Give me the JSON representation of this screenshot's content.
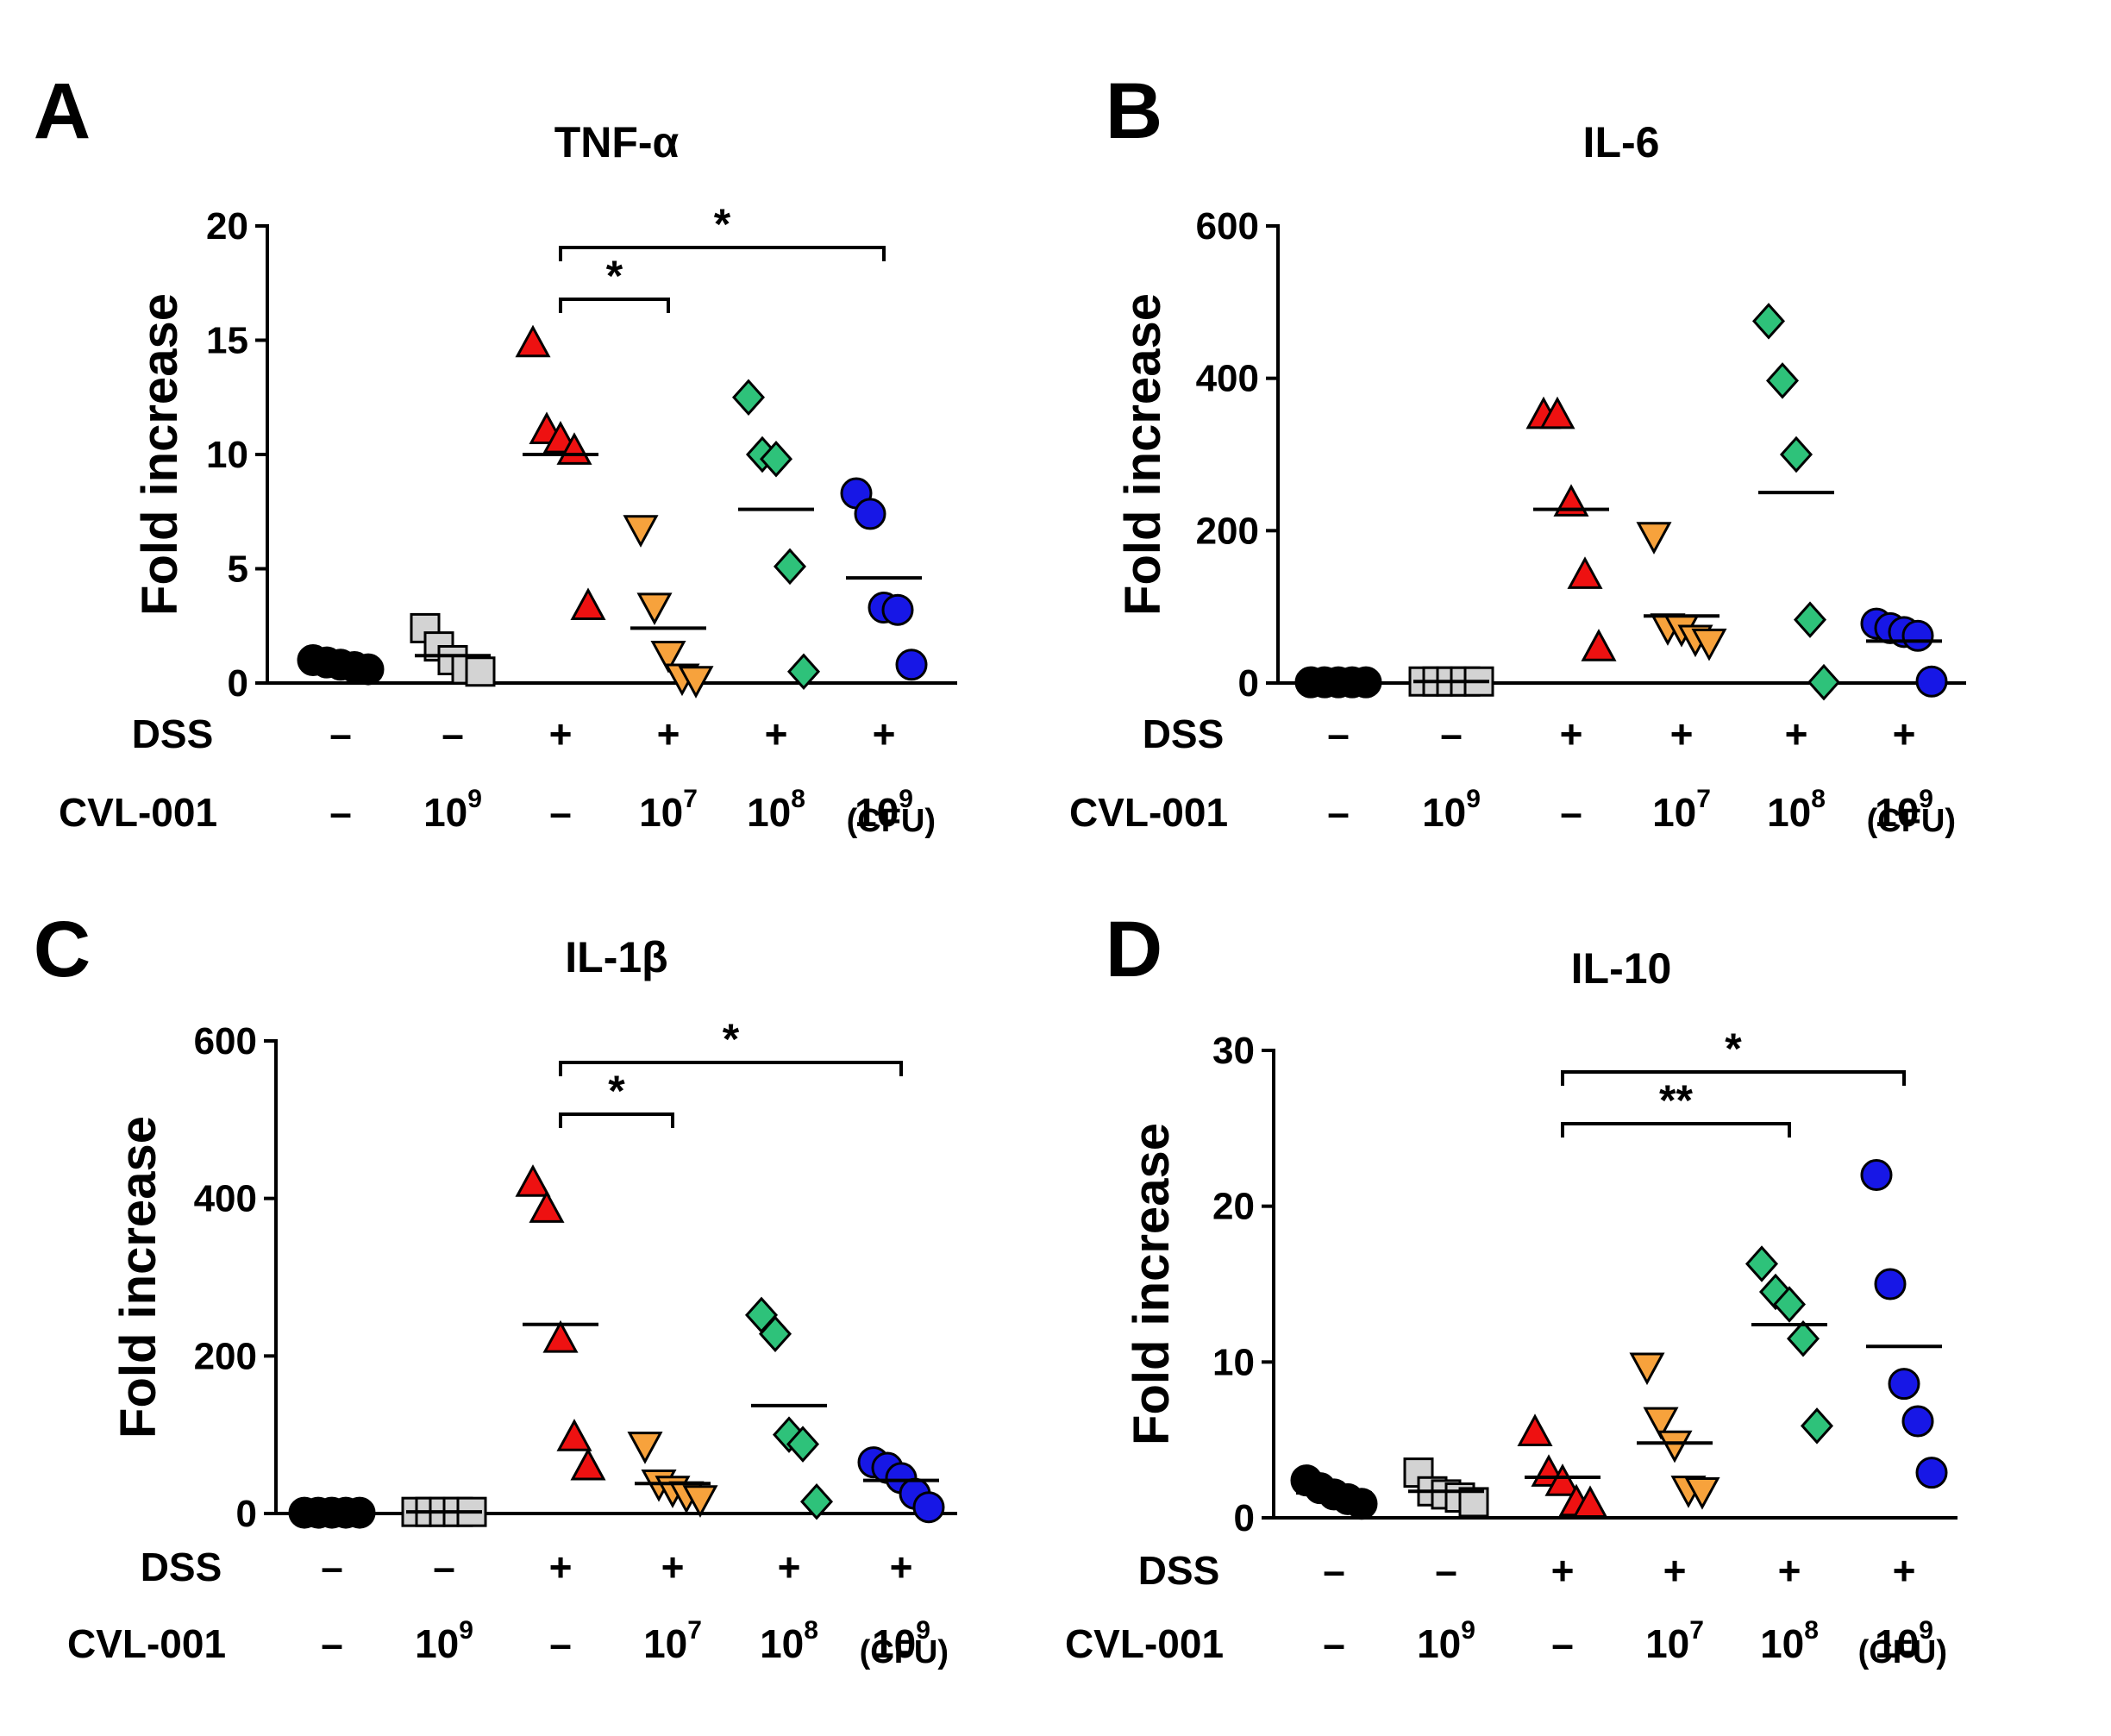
{
  "colors": {
    "control": "#000000",
    "cvl_only": "#d3d3d3",
    "dss": "#ee1111",
    "cvl_1e7": "#f7a23c",
    "cvl_1e8": "#2ec27a",
    "cvl_1e9": "#1717e6"
  },
  "row_labels": {
    "dss": "DSS",
    "cvl": "CVL-001"
  },
  "unit_label": "(CFU)",
  "group_labels": {
    "dss": [
      "–",
      "–",
      "+",
      "+",
      "+",
      "+"
    ],
    "cvl_base": [
      "–",
      "10",
      "–",
      "10",
      "10",
      "10"
    ],
    "cvl_exp": [
      "",
      "9",
      "",
      "7",
      "8",
      "9"
    ]
  },
  "chart_data": [
    {
      "panel": "A",
      "type": "scatter",
      "title": "TNF-α",
      "ylabel": "Fold increase",
      "ylim": [
        0,
        20
      ],
      "yticks": [
        "0",
        "5",
        "10",
        "15",
        "20"
      ],
      "groups": [
        {
          "dss": "–",
          "cvl": "–",
          "marker": "circle",
          "values": [
            1.0,
            0.9,
            0.8,
            0.7,
            0.6
          ],
          "mean": 0.8
        },
        {
          "dss": "–",
          "cvl": "10^9",
          "marker": "square",
          "values": [
            2.4,
            1.6,
            1.0,
            0.6,
            0.5
          ],
          "mean": 1.2
        },
        {
          "dss": "+",
          "cvl": "–",
          "marker": "triangle-up",
          "values": [
            14.8,
            11.0,
            10.6,
            10.1,
            3.3
          ],
          "mean": 10.0
        },
        {
          "dss": "+",
          "cvl": "10^7",
          "marker": "triangle-down",
          "values": [
            6.8,
            3.4,
            1.3,
            0.3,
            0.2
          ],
          "mean": 2.4
        },
        {
          "dss": "+",
          "cvl": "10^8",
          "marker": "diamond",
          "values": [
            12.5,
            10.0,
            9.8,
            5.1,
            0.5
          ],
          "mean": 7.6
        },
        {
          "dss": "+",
          "cvl": "10^9",
          "marker": "circle",
          "values": [
            8.3,
            7.4,
            3.3,
            3.2,
            0.8
          ],
          "mean": 4.6
        }
      ],
      "significance": [
        {
          "from": 2,
          "to": 3,
          "label": "*"
        },
        {
          "from": 2,
          "to": 5,
          "label": "*"
        }
      ]
    },
    {
      "panel": "B",
      "type": "scatter",
      "title": "IL-6",
      "ylabel": "Fold increase",
      "ylim": [
        0,
        600
      ],
      "yticks": [
        "0",
        "200",
        "400",
        "600"
      ],
      "groups": [
        {
          "dss": "–",
          "cvl": "–",
          "marker": "circle",
          "values": [
            1,
            1,
            1,
            1,
            1
          ],
          "mean": 1
        },
        {
          "dss": "–",
          "cvl": "10^9",
          "marker": "square",
          "values": [
            2,
            2,
            2,
            2,
            2
          ],
          "mean": 2
        },
        {
          "dss": "+",
          "cvl": "–",
          "marker": "triangle-up",
          "values": [
            350,
            350,
            235,
            140,
            45
          ],
          "mean": 228
        },
        {
          "dss": "+",
          "cvl": "10^7",
          "marker": "triangle-down",
          "values": [
            195,
            75,
            73,
            60,
            55
          ],
          "mean": 88
        },
        {
          "dss": "+",
          "cvl": "10^8",
          "marker": "diamond",
          "values": [
            475,
            397,
            300,
            83,
            1
          ],
          "mean": 250
        },
        {
          "dss": "+",
          "cvl": "10^9",
          "marker": "circle",
          "values": [
            78,
            72,
            67,
            62,
            2
          ],
          "mean": 55
        }
      ],
      "significance": []
    },
    {
      "panel": "C",
      "type": "scatter",
      "title": "IL-1β",
      "ylabel": "Fold increase",
      "ylim": [
        0,
        600
      ],
      "yticks": [
        "0",
        "200",
        "400",
        "600"
      ],
      "groups": [
        {
          "dss": "–",
          "cvl": "–",
          "marker": "circle",
          "values": [
            1,
            1,
            1,
            1,
            1
          ],
          "mean": 1
        },
        {
          "dss": "–",
          "cvl": "10^9",
          "marker": "square",
          "values": [
            2,
            2,
            2,
            2,
            2
          ],
          "mean": 2
        },
        {
          "dss": "+",
          "cvl": "–",
          "marker": "triangle-up",
          "values": [
            418,
            385,
            220,
            95,
            58
          ],
          "mean": 240
        },
        {
          "dss": "+",
          "cvl": "10^7",
          "marker": "triangle-down",
          "values": [
            88,
            40,
            32,
            25,
            20
          ],
          "mean": 38
        },
        {
          "dss": "+",
          "cvl": "10^8",
          "marker": "diamond",
          "values": [
            252,
            228,
            100,
            88,
            15
          ],
          "mean": 137
        },
        {
          "dss": "+",
          "cvl": "10^9",
          "marker": "circle",
          "values": [
            65,
            58,
            45,
            25,
            8
          ],
          "mean": 42
        }
      ],
      "significance": [
        {
          "from": 2,
          "to": 3,
          "label": "*"
        },
        {
          "from": 2,
          "to": 5,
          "label": "*"
        }
      ]
    },
    {
      "panel": "D",
      "type": "scatter",
      "title": "IL-10",
      "ylabel": "Fold increase",
      "ylim": [
        0,
        30
      ],
      "yticks": [
        "0",
        "10",
        "20",
        "30"
      ],
      "groups": [
        {
          "dss": "–",
          "cvl": "–",
          "marker": "circle",
          "values": [
            2.4,
            1.9,
            1.5,
            1.2,
            0.9
          ],
          "mean": 1.6
        },
        {
          "dss": "–",
          "cvl": "10^9",
          "marker": "square",
          "values": [
            2.9,
            1.7,
            1.5,
            1.3,
            1.0
          ],
          "mean": 1.7
        },
        {
          "dss": "+",
          "cvl": "–",
          "marker": "triangle-up",
          "values": [
            5.4,
            2.8,
            2.2,
            0.9,
            0.8
          ],
          "mean": 2.6
        },
        {
          "dss": "+",
          "cvl": "10^7",
          "marker": "triangle-down",
          "values": [
            9.8,
            6.3,
            4.8,
            1.9,
            1.8
          ],
          "mean": 4.8
        },
        {
          "dss": "+",
          "cvl": "10^8",
          "marker": "diamond",
          "values": [
            16.3,
            14.5,
            13.7,
            11.5,
            5.9
          ],
          "mean": 12.4
        },
        {
          "dss": "+",
          "cvl": "10^9",
          "marker": "circle",
          "values": [
            22.0,
            15.0,
            8.6,
            6.2,
            2.9
          ],
          "mean": 11.0
        }
      ],
      "significance": [
        {
          "from": 2,
          "to": 4,
          "label": "**"
        },
        {
          "from": 2,
          "to": 5,
          "label": "*"
        }
      ]
    }
  ]
}
